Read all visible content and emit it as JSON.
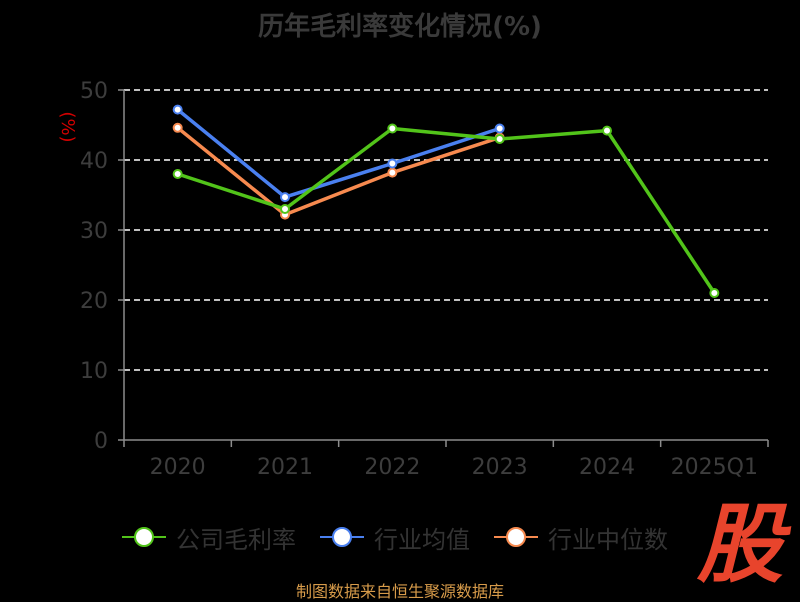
{
  "title": "历年毛利率变化情况(%)",
  "source_text": "制图数据来自恒生聚源数据库",
  "logo_text": "股",
  "colors": {
    "company": "#52c41a",
    "industry_avg": "#4a80f0",
    "industry_median": "#f78a4f",
    "axis": "#8c8c8c",
    "tick_text": "#3d3d3d",
    "grid": "#ffffff",
    "ylabel": "#d10000"
  },
  "chart_data": {
    "type": "line",
    "title": "历年毛利率变化情况(%)",
    "ylabel": "(%)",
    "xlabel": "",
    "categories": [
      "2020",
      "2021",
      "2022",
      "2023",
      "2024",
      "2025Q1"
    ],
    "ylim": [
      0,
      50
    ],
    "yticks": [
      0,
      10,
      20,
      30,
      40,
      50
    ],
    "grid": true,
    "legend_position": "bottom",
    "series": [
      {
        "name": "公司毛利率",
        "key": "company",
        "values": [
          38.0,
          33.0,
          44.5,
          43.0,
          44.2,
          21.0
        ]
      },
      {
        "name": "行业均值",
        "key": "industry_avg",
        "values": [
          47.2,
          34.7,
          39.5,
          44.5,
          null,
          null
        ]
      },
      {
        "name": "行业中位数",
        "key": "industry_median",
        "values": [
          44.6,
          32.2,
          38.2,
          43.2,
          null,
          null
        ]
      }
    ]
  }
}
